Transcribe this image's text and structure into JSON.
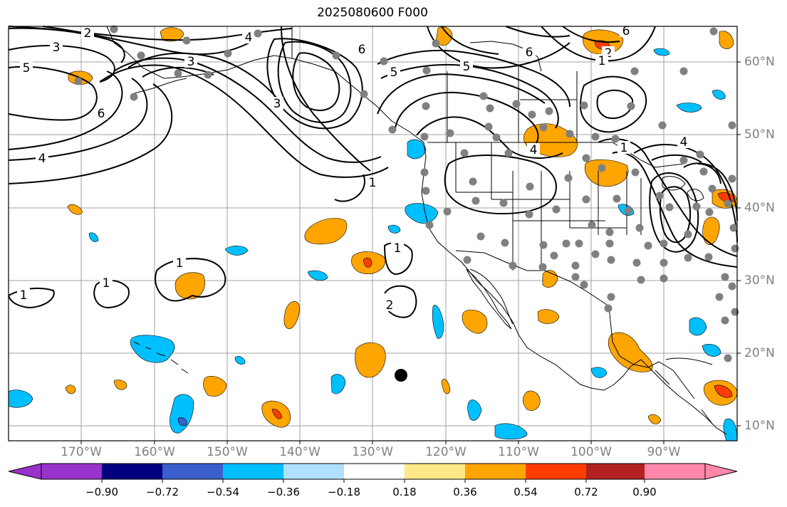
{
  "title": "2025080600 F000",
  "lat_labels": [
    "60°N",
    "50°N",
    "40°N",
    "30°N",
    "20°N",
    "10°N"
  ],
  "lon_labels": [
    "170°W",
    "160°W",
    "150°W",
    "140°W",
    "130°W",
    "120°W",
    "110°W",
    "100°W",
    "90°W"
  ],
  "contour_labels": [
    "2",
    "4",
    "3",
    "5",
    "6",
    "3",
    "1",
    "6",
    "4",
    "3",
    "6",
    "5",
    "5",
    "6",
    "2",
    "1",
    "4",
    "4",
    "1",
    "1",
    "1",
    "1",
    "1",
    "2"
  ],
  "colorbar": {
    "tick_labels": [
      "−0.90",
      "−0.72",
      "−0.54",
      "−0.36",
      "−0.18",
      "0.18",
      "0.36",
      "0.54",
      "0.72",
      "0.90"
    ],
    "colors": [
      "#9932cc",
      "#000080",
      "#3a5fcd",
      "#00bfff",
      "#afe0ff",
      "#ffffff",
      "#ffe885",
      "#ffa500",
      "#ff3c00",
      "#b22222",
      "#ff88aa"
    ]
  },
  "colors": {
    "neg_light": "#00bfff",
    "neg_mid": "#3a5fcd",
    "pos_orange": "#ffa500",
    "pos_red": "#ff3c00",
    "station_dots": "#808080",
    "grid": "#a0a0a0",
    "contours": "#000000"
  }
}
